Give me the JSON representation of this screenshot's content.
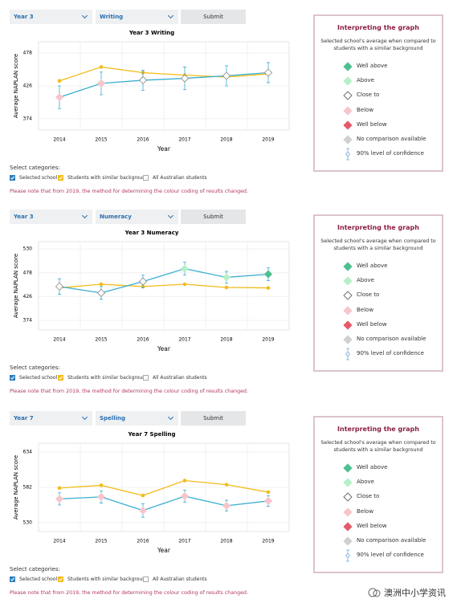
{
  "panels": [
    {
      "year_select": "Year 3",
      "subject_select": "Writing",
      "submit": "Submit",
      "chart_data": {
        "type": "line",
        "title": "Year 3 Writing",
        "y_label": "Average NAPLAN score",
        "x_label": "Year",
        "categories": [
          "2014",
          "2015",
          "2016",
          "2017",
          "2018",
          "2019"
        ],
        "ylim": [
          356,
          496
        ],
        "yticks": [
          374,
          426,
          478
        ],
        "grid": true,
        "series": [
          {
            "name": "Selected school",
            "color": "#3aaed0",
            "values": [
              408,
              430,
              435,
              438,
              442,
              447
            ],
            "errors": [
              18,
              18,
              16,
              18,
              16,
              16
            ],
            "point_colors": [
              "#f7c5cc",
              "#f7c5cc",
              "#ffffff",
              "#ffffff",
              "#ffffff",
              "#ffffff"
            ]
          },
          {
            "name": "Students with similar background",
            "color": "#f2bc1a",
            "values": [
              434,
              456,
              447,
              443,
              440,
              445
            ]
          }
        ]
      },
      "categories_label": "Select categories:",
      "other_category": "All Australian students",
      "note": "Please note that from 2019, the method for determining the colour coding of results changed.",
      "legend": {
        "title": "Interpreting the graph",
        "subtitle": "Selected school's average when compared to students with a similar background",
        "items": [
          "Well above",
          "Above",
          "Close to",
          "Below",
          "Well below",
          "No comparison available",
          "90% level of confidence"
        ]
      }
    },
    {
      "year_select": "Year 3",
      "subject_select": "Numeracy",
      "submit": "Submit",
      "chart_data": {
        "type": "line",
        "title": "Year 3 Numeracy",
        "y_label": "Average NAPLAN score",
        "x_label": "Year",
        "categories": [
          "2014",
          "2015",
          "2016",
          "2017",
          "2018",
          "2019"
        ],
        "ylim": [
          353,
          546
        ],
        "yticks": [
          374,
          426,
          478,
          530
        ],
        "grid": true,
        "series": [
          {
            "name": "Selected school",
            "color": "#3aaed0",
            "values": [
              448,
              434,
              459,
              487,
              468,
              475
            ],
            "errors": [
              17,
              14,
              14,
              14,
              13,
              14
            ],
            "point_colors": [
              "#ffffff",
              "#ffffff",
              "#ffffff",
              "#b6f0c8",
              "#b6f0c8",
              "#4dc08f"
            ]
          },
          {
            "name": "Students with similar background",
            "color": "#f2bc1a",
            "values": [
              445,
              453,
              448,
              453,
              446,
              445
            ]
          }
        ]
      },
      "categories_label": "Select categories:",
      "other_category": "All Australian students",
      "note": "Please note that from 2019, the method for determining the colour coding of results changed.",
      "legend": {
        "title": "Interpreting the graph",
        "subtitle": "Selected school's average when compared to students with a similar background",
        "items": [
          "Well above",
          "Above",
          "Close to",
          "Below",
          "Well below",
          "No comparison available",
          "90% level of confidence"
        ]
      }
    },
    {
      "year_select": "Year 7",
      "subject_select": "Spelling",
      "submit": "Submit",
      "chart_data": {
        "type": "line",
        "title": "Year 7 Spelling",
        "y_label": "Average NAPLAN score",
        "x_label": "Year",
        "categories": [
          "2014",
          "2015",
          "2016",
          "2017",
          "2018",
          "2019"
        ],
        "ylim": [
          517,
          647
        ],
        "yticks": [
          530,
          582,
          634
        ],
        "grid": true,
        "series": [
          {
            "name": "Selected school",
            "color": "#3aaed0",
            "values": [
              565,
              568,
              548,
              569,
              555,
              562
            ],
            "errors": [
              9,
              9,
              10,
              9,
              8,
              8
            ],
            "point_colors": [
              "#f7c5cc",
              "#f7c5cc",
              "#f7c5cc",
              "#f7c5cc",
              "#f7c5cc",
              "#f7c5cc"
            ]
          },
          {
            "name": "Students with similar background",
            "color": "#f2bc1a",
            "values": [
              581,
              585,
              570,
              592,
              586,
              575
            ]
          }
        ]
      },
      "categories_label": "Select categories:",
      "other_category": "All Australian students",
      "note": "Please note that from 2019, the method for determining the colour coding of results changed.",
      "legend": {
        "title": "Interpreting the graph",
        "subtitle": "Selected school's average when compared to students with a similar background",
        "items": [
          "Well above",
          "Above",
          "Close to",
          "Below",
          "Well below",
          "No comparison available",
          "90% level of confidence"
        ]
      }
    }
  ],
  "watermark": "澳洲中小学资讯"
}
